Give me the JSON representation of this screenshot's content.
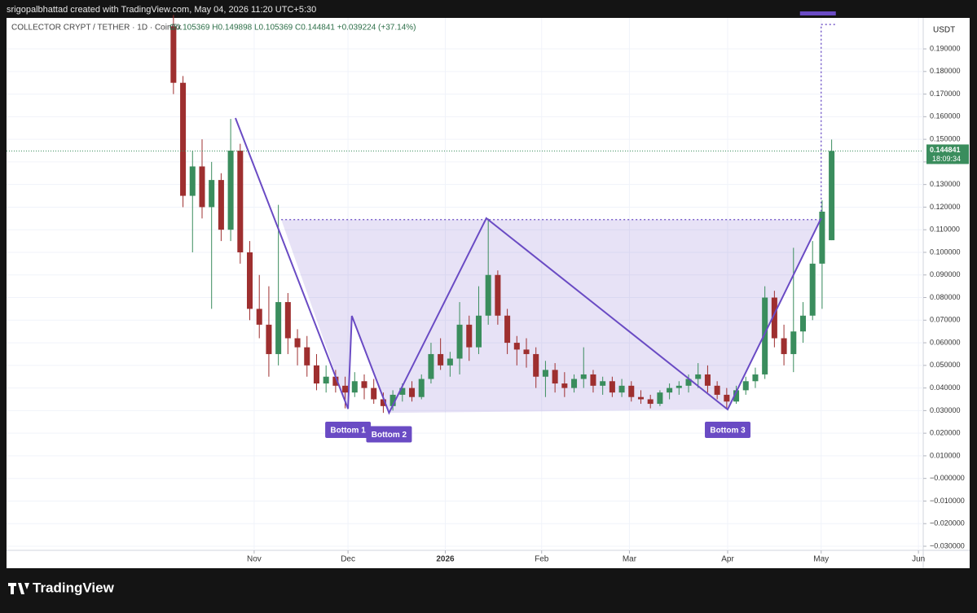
{
  "header": {
    "credit": "srigopalbhattad created with TradingView.com, May 04, 2026 11:20 UTC+5:30"
  },
  "footer": {
    "brand": "TradingView"
  },
  "chart_data": {
    "type": "candlestick",
    "title": "COLLECTOR CRYPT / TETHER · 1D · CoinEx",
    "legend": "O0.105369 H0.149898 L0.105369 C0.144841 +0.039224 (+37.14%)",
    "currency": "USDT",
    "countdown": "18:09:34",
    "up_color": "#3a8d5d",
    "down_color": "#9e2f2f",
    "pattern_color": "#6a4bc4",
    "grid": true,
    "ylim": [
      -0.0318,
      0.2037
    ],
    "yticks": [
      {
        "value": 0.19,
        "label": "0.190000"
      },
      {
        "value": 0.18,
        "label": "0.180000"
      },
      {
        "value": 0.17,
        "label": "0.170000"
      },
      {
        "value": 0.16,
        "label": "0.160000"
      },
      {
        "value": 0.15,
        "label": "0.150000"
      },
      {
        "value": 0.14,
        "label": "0.140000"
      },
      {
        "value": 0.13,
        "label": "0.130000"
      },
      {
        "value": 0.12,
        "label": "0.120000"
      },
      {
        "value": 0.11,
        "label": "0.110000"
      },
      {
        "value": 0.1,
        "label": "0.100000"
      },
      {
        "value": 0.09,
        "label": "0.090000"
      },
      {
        "value": 0.08,
        "label": "0.080000"
      },
      {
        "value": 0.07,
        "label": "0.070000"
      },
      {
        "value": 0.06,
        "label": "0.060000"
      },
      {
        "value": 0.05,
        "label": "0.050000"
      },
      {
        "value": 0.04,
        "label": "0.040000"
      },
      {
        "value": 0.03,
        "label": "0.030000"
      },
      {
        "value": 0.02,
        "label": "0.020000"
      },
      {
        "value": 0.01,
        "label": "0.010000"
      },
      {
        "value": 0,
        "label": "−0.000000"
      },
      {
        "value": -0.01,
        "label": "−0.010000"
      },
      {
        "value": -0.02,
        "label": "−0.020000"
      },
      {
        "value": -0.03,
        "label": "−0.030000"
      }
    ],
    "xlim": [
      -17.5,
      78.6
    ],
    "xticks": [
      {
        "value": 8.46,
        "label": "Nov"
      },
      {
        "value": 18.3,
        "label": "Dec"
      },
      {
        "value": 28.5,
        "label": "2026"
      },
      {
        "value": 38.6,
        "label": "Feb"
      },
      {
        "value": 47.8,
        "label": "Mar"
      },
      {
        "value": 58.1,
        "label": "Apr"
      },
      {
        "value": 67.9,
        "label": "May"
      },
      {
        "value": 78.1,
        "label": "Jun"
      }
    ],
    "candles": [
      {
        "open": 0.2,
        "high": 0.205,
        "low": 0.17,
        "close": 0.175
      },
      {
        "open": 0.175,
        "high": 0.178,
        "low": 0.12,
        "close": 0.125
      },
      {
        "open": 0.125,
        "high": 0.145,
        "low": 0.1,
        "close": 0.138
      },
      {
        "open": 0.138,
        "high": 0.15,
        "low": 0.115,
        "close": 0.12
      },
      {
        "open": 0.12,
        "high": 0.14,
        "low": 0.075,
        "close": 0.132
      },
      {
        "open": 0.132,
        "high": 0.135,
        "low": 0.105,
        "close": 0.11
      },
      {
        "open": 0.11,
        "high": 0.159,
        "low": 0.105,
        "close": 0.145
      },
      {
        "open": 0.145,
        "high": 0.148,
        "low": 0.095,
        "close": 0.1
      },
      {
        "open": 0.1,
        "high": 0.105,
        "low": 0.07,
        "close": 0.075
      },
      {
        "open": 0.075,
        "high": 0.09,
        "low": 0.062,
        "close": 0.068
      },
      {
        "open": 0.068,
        "high": 0.085,
        "low": 0.045,
        "close": 0.055
      },
      {
        "open": 0.055,
        "high": 0.121,
        "low": 0.05,
        "close": 0.078
      },
      {
        "open": 0.078,
        "high": 0.082,
        "low": 0.055,
        "close": 0.062
      },
      {
        "open": 0.062,
        "high": 0.066,
        "low": 0.05,
        "close": 0.058
      },
      {
        "open": 0.058,
        "high": 0.063,
        "low": 0.045,
        "close": 0.05
      },
      {
        "open": 0.05,
        "high": 0.055,
        "low": 0.039,
        "close": 0.042
      },
      {
        "open": 0.042,
        "high": 0.05,
        "low": 0.038,
        "close": 0.045
      },
      {
        "open": 0.045,
        "high": 0.048,
        "low": 0.038,
        "close": 0.041
      },
      {
        "open": 0.041,
        "high": 0.045,
        "low": 0.031,
        "close": 0.038
      },
      {
        "open": 0.038,
        "high": 0.047,
        "low": 0.036,
        "close": 0.043
      },
      {
        "open": 0.043,
        "high": 0.046,
        "low": 0.035,
        "close": 0.04
      },
      {
        "open": 0.04,
        "high": 0.044,
        "low": 0.033,
        "close": 0.035
      },
      {
        "open": 0.035,
        "high": 0.038,
        "low": 0.029,
        "close": 0.032
      },
      {
        "open": 0.032,
        "high": 0.039,
        "low": 0.03,
        "close": 0.037
      },
      {
        "open": 0.037,
        "high": 0.042,
        "low": 0.034,
        "close": 0.04
      },
      {
        "open": 0.04,
        "high": 0.043,
        "low": 0.034,
        "close": 0.036
      },
      {
        "open": 0.036,
        "high": 0.046,
        "low": 0.035,
        "close": 0.044
      },
      {
        "open": 0.044,
        "high": 0.06,
        "low": 0.042,
        "close": 0.055
      },
      {
        "open": 0.055,
        "high": 0.062,
        "low": 0.048,
        "close": 0.05
      },
      {
        "open": 0.05,
        "high": 0.056,
        "low": 0.045,
        "close": 0.053
      },
      {
        "open": 0.053,
        "high": 0.078,
        "low": 0.046,
        "close": 0.068
      },
      {
        "open": 0.068,
        "high": 0.072,
        "low": 0.052,
        "close": 0.058
      },
      {
        "open": 0.058,
        "high": 0.085,
        "low": 0.055,
        "close": 0.072
      },
      {
        "open": 0.072,
        "high": 0.115,
        "low": 0.068,
        "close": 0.09
      },
      {
        "open": 0.09,
        "high": 0.092,
        "low": 0.068,
        "close": 0.072
      },
      {
        "open": 0.072,
        "high": 0.075,
        "low": 0.055,
        "close": 0.06
      },
      {
        "open": 0.06,
        "high": 0.063,
        "low": 0.05,
        "close": 0.057
      },
      {
        "open": 0.057,
        "high": 0.062,
        "low": 0.049,
        "close": 0.055
      },
      {
        "open": 0.055,
        "high": 0.058,
        "low": 0.04,
        "close": 0.045
      },
      {
        "open": 0.045,
        "high": 0.052,
        "low": 0.036,
        "close": 0.048
      },
      {
        "open": 0.048,
        "high": 0.051,
        "low": 0.038,
        "close": 0.042
      },
      {
        "open": 0.042,
        "high": 0.047,
        "low": 0.036,
        "close": 0.04
      },
      {
        "open": 0.04,
        "high": 0.046,
        "low": 0.038,
        "close": 0.044
      },
      {
        "open": 0.044,
        "high": 0.058,
        "low": 0.04,
        "close": 0.046
      },
      {
        "open": 0.046,
        "high": 0.048,
        "low": 0.038,
        "close": 0.041
      },
      {
        "open": 0.041,
        "high": 0.045,
        "low": 0.037,
        "close": 0.043
      },
      {
        "open": 0.043,
        "high": 0.045,
        "low": 0.036,
        "close": 0.038
      },
      {
        "open": 0.038,
        "high": 0.044,
        "low": 0.036,
        "close": 0.041
      },
      {
        "open": 0.041,
        "high": 0.043,
        "low": 0.034,
        "close": 0.036
      },
      {
        "open": 0.036,
        "high": 0.039,
        "low": 0.033,
        "close": 0.035
      },
      {
        "open": 0.035,
        "high": 0.037,
        "low": 0.031,
        "close": 0.033
      },
      {
        "open": 0.033,
        "high": 0.039,
        "low": 0.032,
        "close": 0.038
      },
      {
        "open": 0.038,
        "high": 0.042,
        "low": 0.035,
        "close": 0.04
      },
      {
        "open": 0.04,
        "high": 0.043,
        "low": 0.037,
        "close": 0.041
      },
      {
        "open": 0.041,
        "high": 0.046,
        "low": 0.038,
        "close": 0.044
      },
      {
        "open": 0.044,
        "high": 0.051,
        "low": 0.04,
        "close": 0.046
      },
      {
        "open": 0.046,
        "high": 0.05,
        "low": 0.038,
        "close": 0.041
      },
      {
        "open": 0.041,
        "high": 0.043,
        "low": 0.035,
        "close": 0.037
      },
      {
        "open": 0.037,
        "high": 0.04,
        "low": 0.031,
        "close": 0.034
      },
      {
        "open": 0.034,
        "high": 0.041,
        "low": 0.033,
        "close": 0.039
      },
      {
        "open": 0.039,
        "high": 0.045,
        "low": 0.037,
        "close": 0.043
      },
      {
        "open": 0.043,
        "high": 0.049,
        "low": 0.04,
        "close": 0.046
      },
      {
        "open": 0.046,
        "high": 0.085,
        "low": 0.044,
        "close": 0.08
      },
      {
        "open": 0.08,
        "high": 0.083,
        "low": 0.058,
        "close": 0.062
      },
      {
        "open": 0.062,
        "high": 0.068,
        "low": 0.05,
        "close": 0.055
      },
      {
        "open": 0.055,
        "high": 0.102,
        "low": 0.047,
        "close": 0.065
      },
      {
        "open": 0.065,
        "high": 0.078,
        "low": 0.06,
        "close": 0.072
      },
      {
        "open": 0.072,
        "high": 0.105,
        "low": 0.07,
        "close": 0.095
      },
      {
        "open": 0.095,
        "high": 0.123,
        "low": 0.075,
        "close": 0.118
      },
      {
        "open": 0.105369,
        "high": 0.149898,
        "low": 0.105369,
        "close": 0.144841
      }
    ],
    "pattern": {
      "x": [
        6.5,
        18.3,
        18.7,
        22.6,
        32.8,
        58.1,
        67.9
      ],
      "y": [
        0.1594,
        0.0308,
        0.0719,
        0.029,
        0.1151,
        0.0305,
        0.1151
      ]
    },
    "neckline": {
      "x": [
        11.3,
        67.9
      ],
      "y": 0.1145
    },
    "target": 0.2008,
    "annotations": [
      {
        "text": "Bottom 1",
        "x": 18.3,
        "y": 0.0215
      },
      {
        "text": "Bottom 2",
        "x": 22.6,
        "y": 0.0195
      },
      {
        "text": "Bottom 3",
        "x": 58.1,
        "y": 0.0215
      }
    ]
  }
}
